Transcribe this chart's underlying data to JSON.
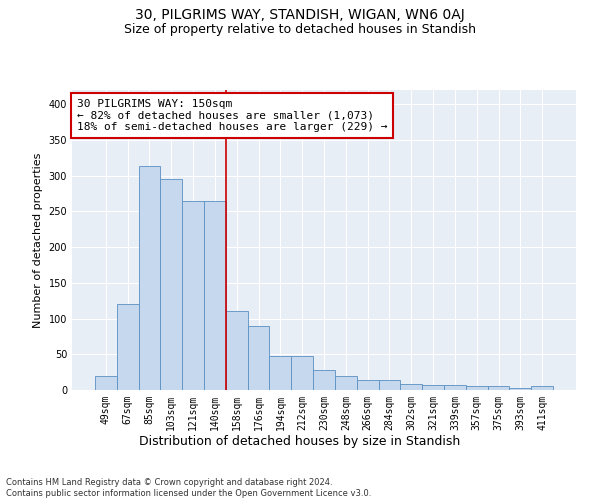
{
  "title": "30, PILGRIMS WAY, STANDISH, WIGAN, WN6 0AJ",
  "subtitle": "Size of property relative to detached houses in Standish",
  "xlabel": "Distribution of detached houses by size in Standish",
  "ylabel": "Number of detached properties",
  "categories": [
    "49sqm",
    "67sqm",
    "85sqm",
    "103sqm",
    "121sqm",
    "140sqm",
    "158sqm",
    "176sqm",
    "194sqm",
    "212sqm",
    "230sqm",
    "248sqm",
    "266sqm",
    "284sqm",
    "302sqm",
    "321sqm",
    "339sqm",
    "357sqm",
    "375sqm",
    "393sqm",
    "411sqm"
  ],
  "values": [
    20,
    120,
    313,
    295,
    265,
    265,
    110,
    90,
    47,
    47,
    28,
    20,
    14,
    14,
    9,
    7,
    7,
    5,
    5,
    3,
    5
  ],
  "bar_color": "#c5d8ee",
  "bar_edge_color": "#5a8fc2",
  "vline_color": "#cc0000",
  "annotation_text": "30 PILGRIMS WAY: 150sqm\n← 82% of detached houses are smaller (1,073)\n18% of semi-detached houses are larger (229) →",
  "annotation_box_color": "white",
  "annotation_box_edge": "#cc0000",
  "ylim": [
    0,
    420
  ],
  "yticks": [
    0,
    50,
    100,
    150,
    200,
    250,
    300,
    350,
    400
  ],
  "bg_color": "#e8eef6",
  "grid_color": "#ffffff",
  "footer": "Contains HM Land Registry data © Crown copyright and database right 2024.\nContains public sector information licensed under the Open Government Licence v3.0.",
  "title_fontsize": 10,
  "subtitle_fontsize": 9,
  "annotation_fontsize": 8,
  "tick_fontsize": 7,
  "ylabel_fontsize": 8,
  "xlabel_fontsize": 9,
  "footer_fontsize": 6
}
